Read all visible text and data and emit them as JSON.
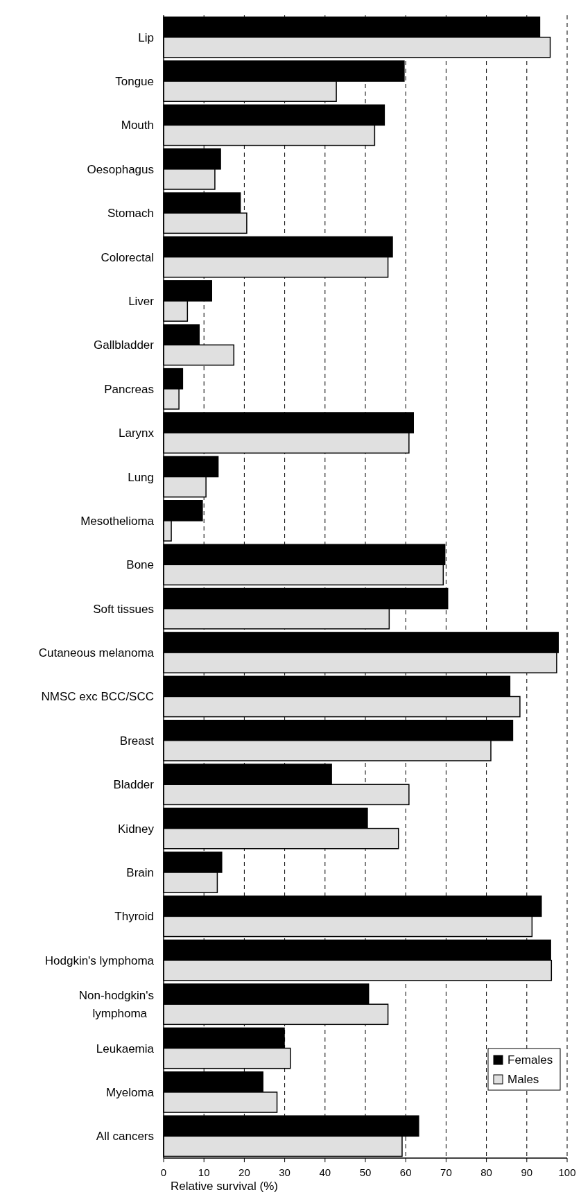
{
  "chart_data": {
    "type": "bar",
    "orientation": "horizontal",
    "xlabel": "Relative survival (%)",
    "categories": [
      "Lip",
      "Tongue",
      "Mouth",
      "Oesophagus",
      "Stomach",
      "Colorectal",
      "Liver",
      "Gallbladder",
      "Pancreas",
      "Larynx",
      "Lung",
      "Mesothelioma",
      "Bone",
      "Soft tissues",
      "Cutaneous melanoma",
      "NMSC exc BCC/SCC",
      "Breast",
      "Bladder",
      "Kidney",
      "Brain",
      "Thyroid",
      "Hodgkin's lymphoma",
      "Non-hodgkin's lymphoma",
      "Leukaemia",
      "Myeloma",
      "All cancers"
    ],
    "series": [
      {
        "name": "Females",
        "color": "#000000",
        "values": [
          93.2,
          59.6,
          54.7,
          14.1,
          19.0,
          56.7,
          11.9,
          8.8,
          4.7,
          61.9,
          13.5,
          9.6,
          69.7,
          70.4,
          97.8,
          85.8,
          86.5,
          41.6,
          50.5,
          14.4,
          93.6,
          95.9,
          50.8,
          29.9,
          24.6,
          63.2
        ]
      },
      {
        "name": "Males",
        "color": "#e0e0e0",
        "values": [
          95.8,
          42.8,
          52.3,
          12.7,
          20.6,
          55.6,
          5.9,
          17.4,
          3.8,
          60.8,
          10.5,
          1.9,
          69.3,
          55.9,
          97.4,
          88.3,
          81.1,
          60.8,
          58.2,
          13.3,
          91.3,
          96.1,
          55.6,
          31.4,
          28.1,
          59.1
        ]
      }
    ],
    "xlim": [
      0,
      100
    ],
    "xticks": [
      0,
      10,
      20,
      30,
      40,
      50,
      60,
      70,
      80,
      90,
      100
    ],
    "grid": "x",
    "legend": "bottom right"
  }
}
